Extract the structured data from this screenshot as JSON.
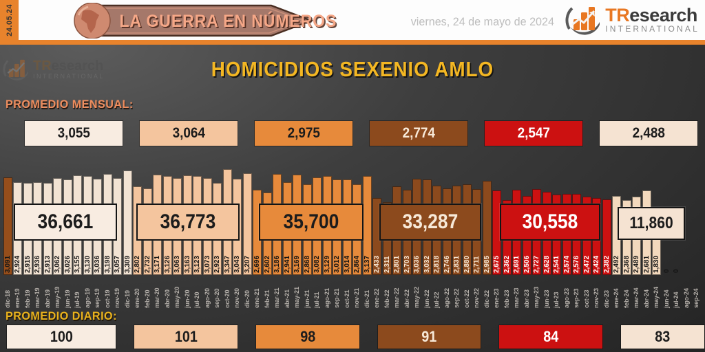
{
  "header": {
    "date_strip": "24.05.24",
    "banner_title": "LA GUERRA EN NÚMEROS",
    "date_text": "viernes, 24 de mayo de 2024",
    "brand": {
      "name_orange": "TR",
      "name_dark": "esearch",
      "subtitle": "INTERNATIONAL"
    }
  },
  "watermark": {
    "name_orange": "TR",
    "name_dark": "esearch",
    "subtitle": "INTERNATIONAL"
  },
  "main": {
    "title": "HOMICIDIOS SEXENIO AMLO",
    "monthly_label": "PROMEDIO MENSUAL:",
    "daily_label": "PROMEDIO DIARIO:",
    "monthly_averages": [
      "3,055",
      "3,064",
      "2,975",
      "2,774",
      "2,547",
      "2,488"
    ],
    "year_totals": [
      "36,661",
      "36,773",
      "35,700",
      "33,287",
      "30,558",
      "11,860"
    ],
    "daily_averages": [
      "100",
      "101",
      "98",
      "91",
      "84",
      "83"
    ]
  },
  "palette": {
    "accent_orange": "#e8832c",
    "banner_brown": "#a5786a",
    "banner_text": "#f5a787",
    "title_yellow": "#f4b723",
    "cream_2019": "#f2e3d3",
    "peach_2020": "#f4c59e",
    "orange_2021": "#e78a3b",
    "brown_2022": "#8c4a1d",
    "red_2023": "#cc1111",
    "cream_2024": "#f3d9bd",
    "brown_dic18": "#964e1b"
  },
  "chart_data": {
    "type": "bar",
    "title": "HOMICIDIOS SEXENIO AMLO",
    "xlabel": "",
    "ylabel": "",
    "ylim": [
      0,
      3400
    ],
    "grid": false,
    "legend": "none",
    "x": [
      "dic-18",
      "ene-19",
      "feb-19",
      "mar-19",
      "abr-19",
      "may-19",
      "jun-19",
      "jul-19",
      "ago-19",
      "sep-19",
      "oct-19",
      "nov-19",
      "dic-19",
      "ene-20",
      "feb-20",
      "mar-20",
      "abr-20",
      "may-20",
      "jun-20",
      "jul-20",
      "ago-20",
      "sep-20",
      "oct-20",
      "nov-20",
      "dic-20",
      "ene-21",
      "feb-21",
      "mar-21",
      "abr-21",
      "may-21",
      "jun-21",
      "jul-21",
      "ago-21",
      "sep-21",
      "oct-21",
      "nov-21",
      "dic-21",
      "ene-22",
      "feb-22",
      "mar-22",
      "abr-22",
      "may-22",
      "jun-22",
      "jul-22",
      "ago-22",
      "sep-22",
      "oct-22",
      "nov-22",
      "dic-22",
      "ene-23",
      "feb-23",
      "mar-23",
      "abr-23",
      "may-23",
      "jun-23",
      "jul-23",
      "ago-23",
      "sep-23",
      "oct-23",
      "nov-23",
      "dic-23",
      "ene-24",
      "feb-24",
      "mar-24",
      "abr-24",
      "may-24",
      "jun-24",
      "jul-24",
      "ago-24",
      "sep-24"
    ],
    "values": [
      3091,
      2924,
      2915,
      2936,
      2913,
      3062,
      3026,
      3155,
      3130,
      3036,
      3198,
      3057,
      3309,
      2802,
      2732,
      3171,
      3126,
      3063,
      3163,
      3123,
      3073,
      2923,
      3347,
      3043,
      3207,
      2696,
      2602,
      3186,
      2941,
      3169,
      2868,
      3082,
      3129,
      3012,
      3014,
      2864,
      3137,
      2433,
      2311,
      2801,
      2703,
      3036,
      3032,
      2818,
      2746,
      2831,
      2880,
      2711,
      2985,
      2675,
      2362,
      2691,
      2506,
      2727,
      2628,
      2541,
      2574,
      2576,
      2472,
      2424,
      2382,
      2492,
      2368,
      2489,
      2681,
      1830,
      0,
      0,
      null,
      null
    ],
    "bar_colors": {
      "18": "#964e1b",
      "19": "#f2e3d3",
      "20": "#f4c59e",
      "21": "#e78a3b",
      "22": "#8c4a1d",
      "23": "#cc1111",
      "24": "#f3d9bd"
    },
    "value_text_colors": {
      "18": "#161616",
      "19": "#161616",
      "20": "#161616",
      "21": "#111111",
      "22": "#f6e8d6",
      "23": "#ffffff",
      "24": "#161616"
    },
    "annotations": [
      "36,661",
      "36,773",
      "35,700",
      "33,287",
      "30,558",
      "11,860"
    ]
  }
}
